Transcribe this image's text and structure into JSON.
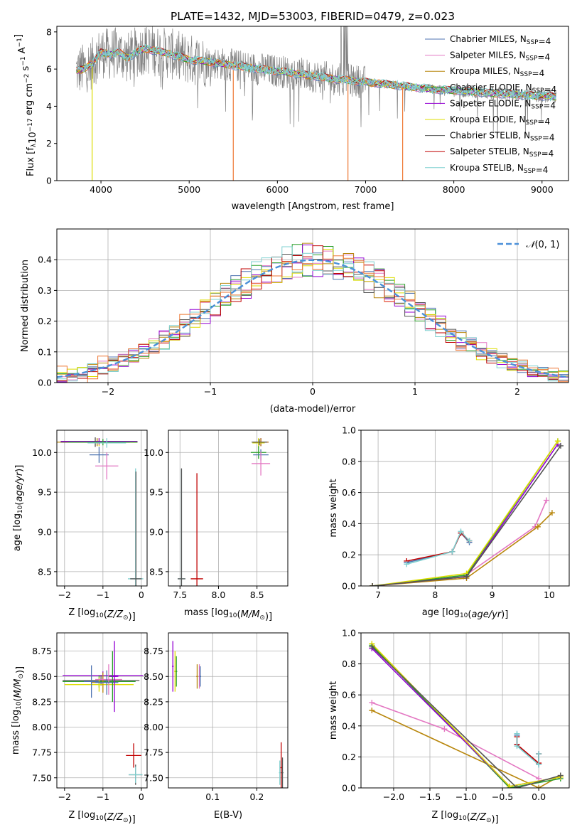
{
  "title": "PLATE=1432, MJD=53003, FIBERID=0479, z=0.023",
  "colors": {
    "Chabrier MILES": "#4c72b0",
    "Salpeter MILES": "#e377c2",
    "Kroupa MILES": "#b8860b",
    "Chabrier ELODIE": "#2ca02c",
    "Salpeter ELODIE": "#9400d3",
    "Kroupa ELODIE": "#dddd00",
    "Chabrier STELIB": "#555555",
    "Salpeter STELIB": "#c00000",
    "Kroupa STELIB": "#7fd0d0",
    "data": "#808080",
    "extra": "#ee7733",
    "normal": "#4a90d9"
  },
  "models": [
    "Chabrier MILES",
    "Salpeter MILES",
    "Kroupa MILES",
    "Chabrier ELODIE",
    "Salpeter ELODIE",
    "Kroupa ELODIE",
    "Chabrier STELIB",
    "Salpeter STELIB",
    "Kroupa STELIB"
  ],
  "nssp_label": "=4",
  "chart_data": [
    {
      "id": "spectrum",
      "type": "line",
      "title": "PLATE=1432, MJD=53003, FIBERID=0479, z=0.023",
      "xlabel": "wavelength [Angstrom, rest frame]",
      "ylabel": "Flux [f",
      "xlim": [
        3500,
        9300
      ],
      "ylim": [
        0,
        8.3
      ],
      "xticks": [
        4000,
        5000,
        6000,
        7000,
        8000,
        9000
      ],
      "yticks": [
        0,
        2,
        4,
        6,
        8
      ],
      "legend": "top-right",
      "continuum": {
        "x": [
          3720,
          3800,
          3900,
          4000,
          4100,
          4200,
          4300,
          4400,
          4500,
          4600,
          4800,
          5000,
          5200,
          5500,
          5800,
          6000,
          6300,
          6600,
          7000,
          7200,
          7400,
          7600,
          7800,
          8000,
          8200,
          8400,
          8600,
          8800,
          9000,
          9160
        ],
        "y": [
          5.9,
          6.0,
          6.3,
          6.9,
          6.8,
          6.9,
          6.6,
          6.9,
          7.1,
          7.0,
          6.8,
          6.5,
          6.4,
          6.2,
          6.0,
          5.9,
          5.7,
          5.5,
          5.3,
          5.2,
          5.1,
          5.0,
          4.9,
          4.85,
          4.8,
          4.7,
          4.65,
          4.6,
          4.55,
          4.5
        ]
      }
    },
    {
      "id": "residuals",
      "type": "line",
      "xlabel": "(data-model)/error",
      "ylabel": "Normed distribution",
      "xlim": [
        -2.5,
        2.5
      ],
      "ylim": [
        0,
        0.5
      ],
      "xticks": [
        -2,
        -1,
        0,
        1,
        2
      ],
      "yticks": [
        0.0,
        0.1,
        0.2,
        0.3,
        0.4
      ],
      "legend": "top-right",
      "normal_label": "(0, 1)"
    },
    {
      "id": "age_vs_Z",
      "type": "scatter",
      "xlabel": "Z [log",
      "ylabel": "age  [log",
      "xlim": [
        -2.2,
        0.15
      ],
      "ylim": [
        8.32,
        10.28
      ],
      "xticks": [
        -2,
        -1,
        0
      ],
      "yticks": [
        8.5,
        9.0,
        9.5,
        10.0
      ]
    },
    {
      "id": "age_vs_mass",
      "type": "scatter",
      "xlabel": "mass [log",
      "ylabel": "",
      "xlim": [
        7.35,
        8.9
      ],
      "ylim": [
        8.32,
        10.28
      ],
      "xticks": [
        7.5,
        8.0,
        8.5
      ],
      "yticks": [
        8.5,
        9.0,
        9.5,
        10.0
      ]
    },
    {
      "id": "weight_vs_age",
      "type": "line",
      "xlabel": "age  [log",
      "ylabel": "mass weight",
      "xlim": [
        6.7,
        10.35
      ],
      "ylim": [
        0,
        1.0
      ],
      "xticks": [
        7,
        8,
        9,
        10
      ],
      "yticks": [
        0.0,
        0.2,
        0.4,
        0.6,
        0.8,
        1.0
      ],
      "series": [
        {
          "model": "Chabrier MILES",
          "x": [
            7.5,
            8.3,
            8.45,
            8.6
          ],
          "y": [
            0.15,
            0.22,
            0.34,
            0.28
          ]
        },
        {
          "model": "Salpeter MILES",
          "x": [
            6.9,
            8.5,
            9.75,
            9.95
          ],
          "y": [
            0.0,
            0.06,
            0.38,
            0.55
          ]
        },
        {
          "model": "Kroupa MILES",
          "x": [
            6.9,
            8.55,
            9.8,
            10.05
          ],
          "y": [
            0.0,
            0.05,
            0.38,
            0.47
          ]
        },
        {
          "model": "Chabrier ELODIE",
          "x": [
            6.9,
            8.55,
            10.15
          ],
          "y": [
            0.0,
            0.07,
            0.93
          ]
        },
        {
          "model": "Salpeter ELODIE",
          "x": [
            6.9,
            8.55,
            10.15
          ],
          "y": [
            0.0,
            0.06,
            0.91
          ]
        },
        {
          "model": "Kroupa ELODIE",
          "x": [
            6.9,
            8.55,
            10.15
          ],
          "y": [
            0.0,
            0.08,
            0.93
          ]
        },
        {
          "model": "Chabrier STELIB",
          "x": [
            6.9,
            8.55,
            10.2
          ],
          "y": [
            0.0,
            0.06,
            0.9
          ]
        },
        {
          "model": "Salpeter STELIB",
          "x": [
            7.5,
            8.3,
            8.45,
            8.6
          ],
          "y": [
            0.16,
            0.22,
            0.34,
            0.29
          ]
        },
        {
          "model": "Kroupa STELIB",
          "x": [
            7.5,
            8.3,
            8.45,
            8.6
          ],
          "y": [
            0.14,
            0.22,
            0.35,
            0.29
          ]
        }
      ]
    },
    {
      "id": "mass_vs_Z",
      "type": "scatter",
      "xlabel": "Z [log",
      "ylabel": "mass [log",
      "xlim": [
        -2.2,
        0.15
      ],
      "ylim": [
        7.4,
        8.93
      ],
      "xticks": [
        -2,
        -1,
        0
      ],
      "yticks": [
        7.5,
        7.75,
        8.0,
        8.25,
        8.5,
        8.75
      ]
    },
    {
      "id": "mass_vs_EBV",
      "type": "scatter",
      "xlabel": "E(B-V)",
      "ylabel": "",
      "xlim": [
        0.0,
        0.27
      ],
      "ylim": [
        7.4,
        8.93
      ],
      "xticks": [
        0.1,
        0.2
      ],
      "yticks": [
        7.5,
        7.75,
        8.0,
        8.25,
        8.5,
        8.75
      ]
    },
    {
      "id": "weight_vs_Z",
      "type": "line",
      "xlabel": "Z [log",
      "ylabel": "mass weight",
      "xlim": [
        -2.45,
        0.42
      ],
      "ylim": [
        0,
        1.0
      ],
      "xticks": [
        -2.0,
        -1.5,
        -1.0,
        -0.5,
        0.0
      ],
      "yticks": [
        0.0,
        0.2,
        0.4,
        0.6,
        0.8,
        1.0
      ],
      "series": [
        {
          "model": "Chabrier MILES",
          "x": [
            -0.3,
            -0.3,
            0.0,
            0.0
          ],
          "y": [
            0.34,
            0.28,
            0.15,
            0.22
          ]
        },
        {
          "model": "Salpeter MILES",
          "x": [
            -2.3,
            -1.3,
            0.0
          ],
          "y": [
            0.55,
            0.38,
            0.06
          ]
        },
        {
          "model": "Kroupa MILES",
          "x": [
            -2.3,
            0.0,
            0.3
          ],
          "y": [
            0.5,
            0.0,
            0.08
          ]
        },
        {
          "model": "Chabrier ELODIE",
          "x": [
            -2.3,
            -0.4,
            0.3
          ],
          "y": [
            0.92,
            0.0,
            0.06
          ]
        },
        {
          "model": "Salpeter ELODIE",
          "x": [
            -2.3,
            -0.4,
            0.3
          ],
          "y": [
            0.9,
            0.01,
            0.07
          ]
        },
        {
          "model": "Kroupa ELODIE",
          "x": [
            -2.3,
            -0.4,
            0.3
          ],
          "y": [
            0.93,
            0.01,
            0.07
          ]
        },
        {
          "model": "Chabrier STELIB",
          "x": [
            -2.3,
            -0.3,
            0.3
          ],
          "y": [
            0.91,
            0.0,
            0.08
          ]
        },
        {
          "model": "Salpeter STELIB",
          "x": [
            -0.3,
            -0.3,
            0.0,
            0.0
          ],
          "y": [
            0.33,
            0.28,
            0.16,
            0.22
          ]
        },
        {
          "model": "Kroupa STELIB",
          "x": [
            -0.3,
            -0.3,
            0.0,
            0.0
          ],
          "y": [
            0.35,
            0.27,
            0.15,
            0.22
          ]
        }
      ]
    }
  ]
}
